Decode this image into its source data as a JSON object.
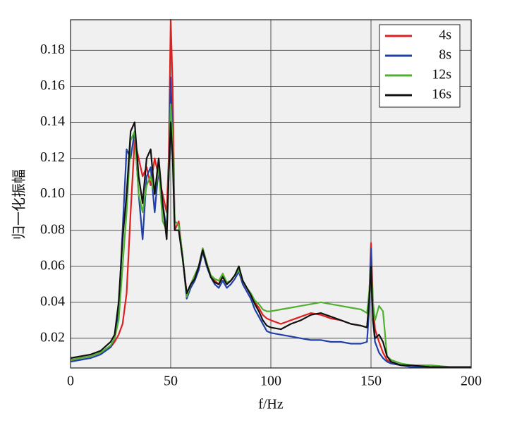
{
  "chart_data": {
    "type": "line",
    "xlabel": "f/Hz",
    "ylabel": "归一化振幅",
    "xlim": [
      0,
      200
    ],
    "ylim": [
      0.0035,
      0.197
    ],
    "xticks": [
      0,
      50,
      100,
      150,
      200
    ],
    "yticks": [
      0.02,
      0.04,
      0.06,
      0.08,
      0.1,
      0.12,
      0.14,
      0.16,
      0.18
    ],
    "grid": true,
    "legend": "upper right",
    "x": [
      0,
      5,
      10,
      15,
      20,
      22,
      24,
      26,
      28,
      30,
      32,
      34,
      36,
      38,
      40,
      42,
      44,
      46,
      48,
      49,
      50,
      51,
      52,
      54,
      56,
      58,
      60,
      62,
      64,
      66,
      68,
      70,
      72,
      74,
      76,
      78,
      80,
      82,
      84,
      86,
      88,
      90,
      92,
      94,
      96,
      98,
      100,
      105,
      110,
      115,
      120,
      125,
      130,
      135,
      140,
      145,
      148,
      149,
      150,
      151,
      152,
      154,
      156,
      158,
      160,
      165,
      170,
      180,
      190,
      200
    ],
    "series": [
      {
        "name": "4s",
        "color": "#e02020",
        "values": [
          0.008,
          0.009,
          0.01,
          0.012,
          0.015,
          0.018,
          0.022,
          0.028,
          0.045,
          0.09,
          0.13,
          0.12,
          0.11,
          0.115,
          0.105,
          0.12,
          0.11,
          0.1,
          0.09,
          0.12,
          0.197,
          0.16,
          0.08,
          0.085,
          0.065,
          0.045,
          0.05,
          0.055,
          0.06,
          0.07,
          0.062,
          0.055,
          0.052,
          0.05,
          0.055,
          0.05,
          0.052,
          0.055,
          0.058,
          0.052,
          0.048,
          0.045,
          0.04,
          0.037,
          0.033,
          0.031,
          0.03,
          0.028,
          0.03,
          0.032,
          0.034,
          0.033,
          0.031,
          0.03,
          0.028,
          0.027,
          0.026,
          0.04,
          0.073,
          0.04,
          0.025,
          0.018,
          0.012,
          0.008,
          0.006,
          0.005,
          0.005,
          0.004,
          0.004,
          0.004
        ]
      },
      {
        "name": "8s",
        "color": "#2040a8",
        "values": [
          0.007,
          0.008,
          0.009,
          0.011,
          0.015,
          0.02,
          0.035,
          0.08,
          0.125,
          0.12,
          0.135,
          0.1,
          0.075,
          0.11,
          0.115,
          0.09,
          0.115,
          0.095,
          0.08,
          0.11,
          0.165,
          0.13,
          0.085,
          0.083,
          0.065,
          0.042,
          0.048,
          0.052,
          0.058,
          0.068,
          0.06,
          0.054,
          0.05,
          0.048,
          0.052,
          0.048,
          0.05,
          0.053,
          0.057,
          0.05,
          0.046,
          0.042,
          0.036,
          0.032,
          0.028,
          0.024,
          0.023,
          0.022,
          0.021,
          0.02,
          0.019,
          0.019,
          0.018,
          0.018,
          0.017,
          0.017,
          0.018,
          0.035,
          0.07,
          0.03,
          0.018,
          0.012,
          0.009,
          0.007,
          0.006,
          0.005,
          0.004,
          0.004,
          0.004,
          0.004
        ]
      },
      {
        "name": "12s",
        "color": "#50b030",
        "values": [
          0.008,
          0.009,
          0.01,
          0.012,
          0.016,
          0.02,
          0.03,
          0.06,
          0.09,
          0.13,
          0.135,
          0.1,
          0.09,
          0.105,
          0.11,
          0.1,
          0.115,
          0.085,
          0.08,
          0.11,
          0.15,
          0.13,
          0.085,
          0.083,
          0.066,
          0.043,
          0.05,
          0.055,
          0.06,
          0.07,
          0.062,
          0.055,
          0.053,
          0.052,
          0.056,
          0.051,
          0.052,
          0.055,
          0.058,
          0.052,
          0.048,
          0.045,
          0.041,
          0.039,
          0.036,
          0.035,
          0.035,
          0.036,
          0.037,
          0.038,
          0.039,
          0.04,
          0.039,
          0.038,
          0.037,
          0.036,
          0.034,
          0.045,
          0.06,
          0.04,
          0.03,
          0.038,
          0.035,
          0.01,
          0.008,
          0.006,
          0.005,
          0.005,
          0.004,
          0.004
        ]
      },
      {
        "name": "16s",
        "color": "#111111",
        "values": [
          0.009,
          0.01,
          0.011,
          0.013,
          0.018,
          0.022,
          0.04,
          0.075,
          0.1,
          0.135,
          0.14,
          0.11,
          0.095,
          0.12,
          0.125,
          0.1,
          0.12,
          0.095,
          0.075,
          0.11,
          0.14,
          0.12,
          0.08,
          0.08,
          0.064,
          0.045,
          0.05,
          0.053,
          0.06,
          0.069,
          0.061,
          0.054,
          0.051,
          0.05,
          0.054,
          0.05,
          0.052,
          0.055,
          0.06,
          0.052,
          0.048,
          0.044,
          0.039,
          0.035,
          0.03,
          0.027,
          0.026,
          0.025,
          0.028,
          0.03,
          0.033,
          0.034,
          0.032,
          0.03,
          0.028,
          0.027,
          0.026,
          0.04,
          0.06,
          0.03,
          0.02,
          0.022,
          0.018,
          0.01,
          0.007,
          0.005,
          0.005,
          0.004,
          0.004,
          0.004
        ]
      }
    ]
  }
}
